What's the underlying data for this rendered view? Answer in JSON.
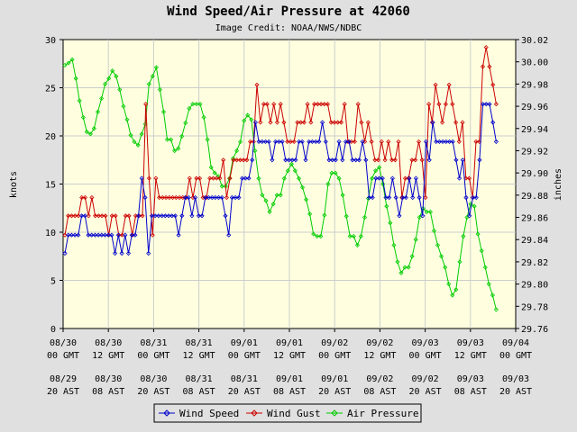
{
  "chart_data": {
    "type": "line",
    "title": "Wind Speed/Air Pressure at 42060",
    "subtitle": "Image Credit: NOAA/NWS/NDBC",
    "ylabel_left": "knots",
    "ylabel_right": "inches",
    "ylim_left": [
      0,
      30
    ],
    "ylim_right": [
      29.76,
      30.02
    ],
    "yticks_left": [
      "0",
      "5",
      "10",
      "15",
      "20",
      "25",
      "30"
    ],
    "yticks_right": [
      "29.76",
      "29.78",
      "29.80",
      "29.82",
      "29.84",
      "29.86",
      "29.88",
      "29.90",
      "29.92",
      "29.94",
      "29.96",
      "29.98",
      "30.00",
      "30.02"
    ],
    "x_range_hours": [
      0,
      120
    ],
    "x_ticks": [
      {
        "gmt1": "08/30",
        "gmt2": "00 GMT",
        "ast1": "08/29",
        "ast2": "20 AST"
      },
      {
        "gmt1": "08/30",
        "gmt2": "12 GMT",
        "ast1": "08/30",
        "ast2": "08 AST"
      },
      {
        "gmt1": "08/31",
        "gmt2": "00 GMT",
        "ast1": "08/30",
        "ast2": "20 AST"
      },
      {
        "gmt1": "08/31",
        "gmt2": "12 GMT",
        "ast1": "08/31",
        "ast2": "08 AST"
      },
      {
        "gmt1": "09/01",
        "gmt2": "00 GMT",
        "ast1": "08/31",
        "ast2": "20 AST"
      },
      {
        "gmt1": "09/01",
        "gmt2": "12 GMT",
        "ast1": "09/01",
        "ast2": "08 AST"
      },
      {
        "gmt1": "09/02",
        "gmt2": "00 GMT",
        "ast1": "09/01",
        "ast2": "20 AST"
      },
      {
        "gmt1": "09/02",
        "gmt2": "12 GMT",
        "ast1": "09/02",
        "ast2": "08 AST"
      },
      {
        "gmt1": "09/03",
        "gmt2": "00 GMT",
        "ast1": "09/02",
        "ast2": "20 AST"
      },
      {
        "gmt1": "09/03",
        "gmt2": "12 GMT",
        "ast1": "09/03",
        "ast2": "08 AST"
      },
      {
        "gmt1": "09/04",
        "gmt2": "00 GMT",
        "ast1": "09/03",
        "ast2": "20 AST"
      }
    ],
    "grid": true,
    "legend_position": "bottom-center",
    "colors": {
      "plot_bg": "#ffffe0",
      "outer_bg": "#e0e0e0",
      "wind_speed": "#0000cc",
      "wind_gust": "#cc0000",
      "air_pressure": "#00cc00",
      "grid": "#cccccc"
    },
    "series": [
      {
        "name": "Wind Speed",
        "axis": "left",
        "color_key": "wind_speed",
        "values": [
          7.8,
          9.7,
          9.7,
          9.7,
          9.7,
          11.7,
          11.7,
          9.7,
          9.7,
          9.7,
          9.7,
          9.7,
          9.7,
          9.7,
          9.7,
          7.8,
          9.7,
          7.8,
          9.7,
          7.8,
          9.7,
          9.7,
          11.7,
          15.6,
          13.6,
          7.8,
          11.7,
          11.7,
          11.7,
          11.7,
          11.7,
          11.7,
          11.7,
          11.7,
          9.7,
          11.7,
          13.6,
          13.6,
          11.7,
          13.6,
          11.7,
          11.7,
          13.6,
          13.6,
          13.6,
          13.6,
          13.6,
          13.6,
          11.7,
          9.7,
          13.6,
          13.6,
          13.6,
          15.6,
          15.6,
          15.6,
          17.5,
          21.4,
          19.4,
          19.4,
          19.4,
          19.4,
          17.5,
          19.4,
          19.4,
          19.4,
          17.5,
          17.5,
          17.5,
          17.5,
          19.4,
          19.4,
          17.5,
          19.4,
          19.4,
          19.4,
          19.4,
          21.4,
          19.4,
          17.5,
          17.5,
          17.5,
          19.4,
          17.5,
          19.4,
          19.4,
          17.5,
          17.5,
          17.5,
          19.4,
          17.5,
          13.6,
          13.6,
          15.6,
          15.6,
          15.6,
          13.6,
          13.6,
          15.6,
          13.6,
          11.7,
          13.6,
          13.6,
          15.6,
          13.6,
          15.6,
          13.6,
          11.7,
          19.4,
          17.5,
          21.4,
          19.4,
          19.4,
          19.4,
          19.4,
          19.4,
          19.4,
          17.5,
          15.6,
          17.5,
          13.6,
          11.7,
          13.6,
          13.6,
          17.5,
          23.3,
          23.3,
          23.3,
          21.4,
          19.4
        ]
      },
      {
        "name": "Wind Gust",
        "axis": "left",
        "color_key": "wind_gust",
        "values": [
          9.7,
          11.7,
          11.7,
          11.7,
          11.7,
          13.6,
          13.6,
          11.7,
          13.6,
          11.7,
          11.7,
          11.7,
          11.7,
          9.7,
          11.7,
          11.7,
          9.7,
          9.7,
          11.7,
          11.7,
          9.7,
          11.7,
          11.7,
          11.7,
          23.3,
          15.6,
          9.7,
          15.6,
          13.6,
          13.6,
          13.6,
          13.6,
          13.6,
          13.6,
          13.6,
          13.6,
          13.6,
          15.6,
          13.6,
          15.6,
          15.6,
          13.6,
          13.6,
          15.6,
          15.6,
          15.6,
          15.6,
          17.5,
          13.6,
          15.6,
          17.5,
          17.5,
          17.5,
          17.5,
          17.5,
          19.4,
          19.4,
          25.3,
          21.4,
          23.3,
          23.3,
          21.4,
          23.3,
          21.4,
          23.3,
          21.4,
          19.4,
          19.4,
          19.4,
          21.4,
          21.4,
          21.4,
          23.3,
          21.4,
          23.3,
          23.3,
          23.3,
          23.3,
          23.3,
          21.4,
          21.4,
          21.4,
          21.4,
          23.3,
          19.4,
          19.4,
          19.4,
          23.3,
          21.4,
          19.4,
          21.4,
          19.4,
          17.5,
          17.5,
          19.4,
          17.5,
          19.4,
          17.5,
          17.5,
          19.4,
          13.6,
          15.6,
          15.6,
          17.5,
          17.5,
          19.4,
          17.5,
          13.6,
          23.3,
          21.4,
          25.3,
          23.3,
          21.4,
          23.3,
          25.3,
          23.3,
          21.4,
          19.4,
          21.4,
          15.6,
          15.6,
          13.6,
          19.4,
          19.4,
          27.2,
          29.2,
          27.2,
          25.3,
          23.3
        ]
      },
      {
        "name": "Air Pressure",
        "axis": "right",
        "color_key": "air_pressure",
        "values": [
          29.997,
          29.999,
          30.002,
          29.985,
          29.965,
          29.95,
          29.937,
          29.935,
          29.94,
          29.955,
          29.967,
          29.98,
          29.985,
          29.992,
          29.987,
          29.975,
          29.96,
          29.948,
          29.934,
          29.928,
          29.925,
          29.935,
          29.944,
          29.98,
          29.987,
          29.995,
          29.975,
          29.955,
          29.93,
          29.93,
          29.92,
          29.922,
          29.933,
          29.945,
          29.958,
          29.962,
          29.962,
          29.962,
          29.95,
          29.93,
          29.905,
          29.9,
          29.897,
          29.888,
          29.888,
          29.895,
          29.913,
          29.92,
          29.928,
          29.947,
          29.952,
          29.948,
          29.92,
          29.895,
          29.88,
          29.875,
          29.865,
          29.872,
          29.88,
          29.88,
          29.895,
          29.902,
          29.908,
          29.902,
          29.895,
          29.887,
          29.876,
          29.863,
          29.845,
          29.843,
          29.843,
          29.862,
          29.89,
          29.9,
          29.9,
          29.895,
          29.88,
          29.861,
          29.843,
          29.843,
          29.835,
          29.843,
          29.86,
          29.877,
          29.895,
          29.902,
          29.905,
          29.89,
          29.87,
          29.855,
          29.835,
          29.82,
          29.81,
          29.815,
          29.815,
          29.825,
          29.84,
          29.86,
          29.868,
          29.865,
          29.865,
          29.848,
          29.835,
          29.825,
          29.815,
          29.8,
          29.79,
          29.795,
          29.82,
          29.843,
          29.86,
          29.872,
          29.87,
          29.845,
          29.83,
          29.815,
          29.8,
          29.79,
          29.777
        ]
      }
    ]
  }
}
